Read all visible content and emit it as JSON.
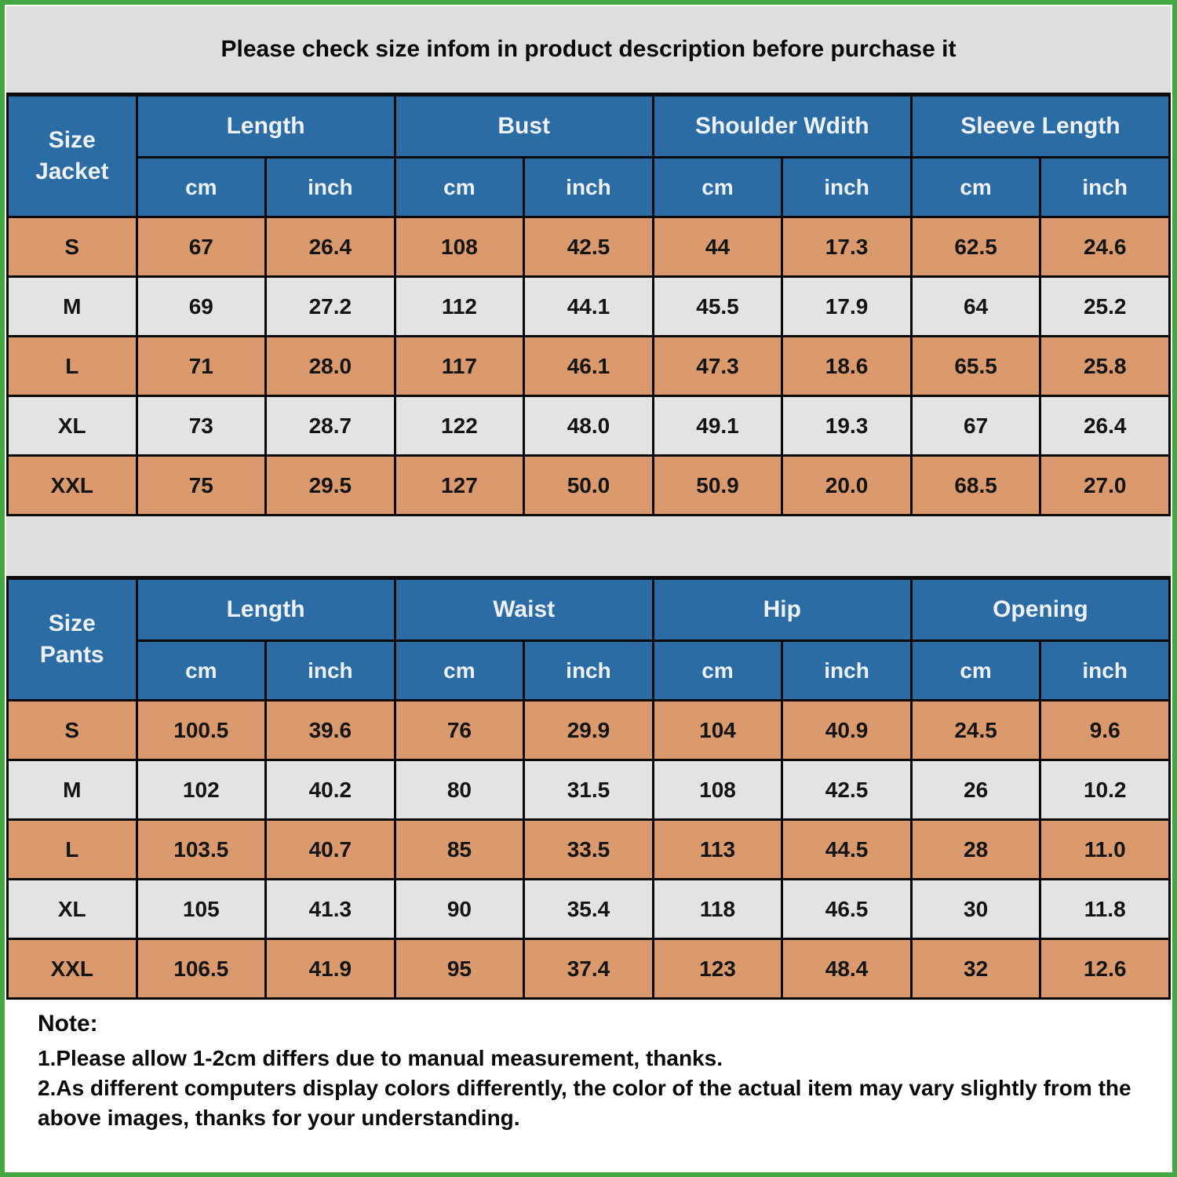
{
  "colors": {
    "frame_green": "#43A843",
    "header_blue": "#2C6CA4",
    "row_tan": "#DB9A6D",
    "row_gray": "#E3E3E3",
    "banner_gray": "#DEDEDE",
    "grid_black": "#0a0a0a"
  },
  "banner": {
    "text": "Please check size infom in product description before purchase it"
  },
  "jacket_table": {
    "title_line1": "Size",
    "title_line2": "Jacket",
    "groups": [
      "Length",
      "Bust",
      "Shoulder Wdith",
      "Sleeve Length"
    ],
    "units": [
      "cm",
      "inch"
    ],
    "rows": [
      {
        "size": "S",
        "values": [
          "67",
          "26.4",
          "108",
          "42.5",
          "44",
          "17.3",
          "62.5",
          "24.6"
        ]
      },
      {
        "size": "M",
        "values": [
          "69",
          "27.2",
          "112",
          "44.1",
          "45.5",
          "17.9",
          "64",
          "25.2"
        ]
      },
      {
        "size": "L",
        "values": [
          "71",
          "28.0",
          "117",
          "46.1",
          "47.3",
          "18.6",
          "65.5",
          "25.8"
        ]
      },
      {
        "size": "XL",
        "values": [
          "73",
          "28.7",
          "122",
          "48.0",
          "49.1",
          "19.3",
          "67",
          "26.4"
        ]
      },
      {
        "size": "XXL",
        "values": [
          "75",
          "29.5",
          "127",
          "50.0",
          "50.9",
          "20.0",
          "68.5",
          "27.0"
        ]
      }
    ]
  },
  "pants_table": {
    "title_line1": "Size",
    "title_line2": "Pants",
    "groups": [
      "Length",
      "Waist",
      "Hip",
      "Opening"
    ],
    "units": [
      "cm",
      "inch"
    ],
    "rows": [
      {
        "size": "S",
        "values": [
          "100.5",
          "39.6",
          "76",
          "29.9",
          "104",
          "40.9",
          "24.5",
          "9.6"
        ]
      },
      {
        "size": "M",
        "values": [
          "102",
          "40.2",
          "80",
          "31.5",
          "108",
          "42.5",
          "26",
          "10.2"
        ]
      },
      {
        "size": "L",
        "values": [
          "103.5",
          "40.7",
          "85",
          "33.5",
          "113",
          "44.5",
          "28",
          "11.0"
        ]
      },
      {
        "size": "XL",
        "values": [
          "105",
          "41.3",
          "90",
          "35.4",
          "118",
          "46.5",
          "30",
          "11.8"
        ]
      },
      {
        "size": "XXL",
        "values": [
          "106.5",
          "41.9",
          "95",
          "37.4",
          "123",
          "48.4",
          "32",
          "12.6"
        ]
      }
    ]
  },
  "note": {
    "title": "Note:",
    "line1": "1.Please allow 1-2cm differs due to manual measurement, thanks.",
    "line2": "2.As different computers display colors differently, the color of the actual item may vary slightly from the above images,  thanks for your understanding."
  }
}
